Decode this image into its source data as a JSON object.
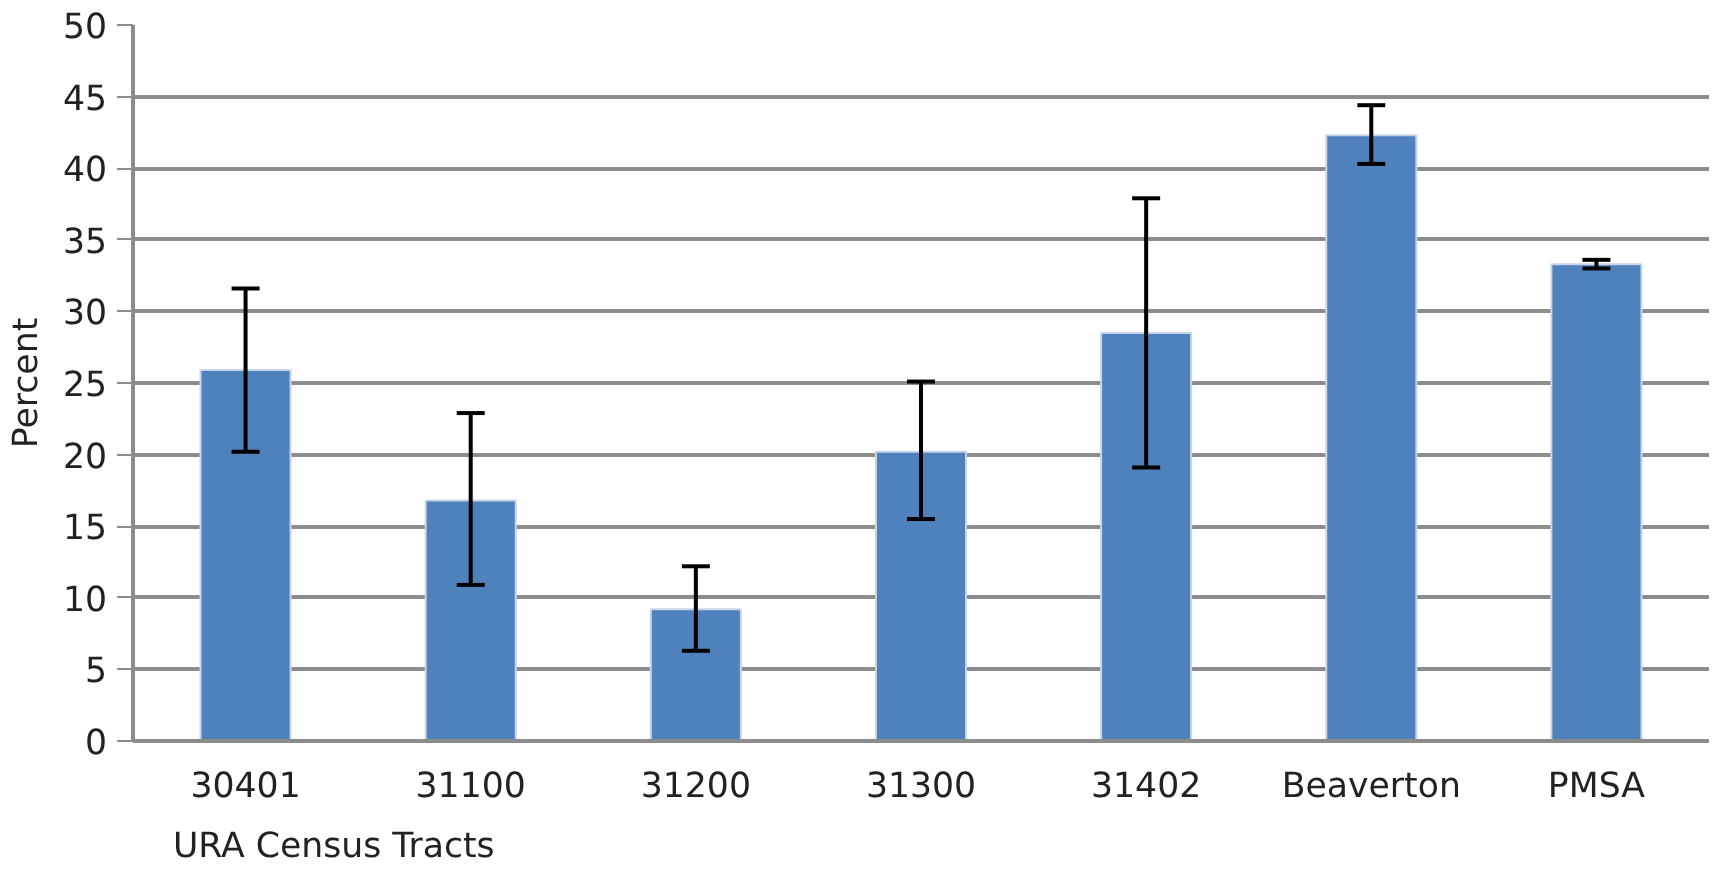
{
  "chart_data": {
    "type": "bar",
    "xlabel": "URA Census Tracts",
    "ylabel": "Percent",
    "categories": [
      "30401",
      "31100",
      "31200",
      "31300",
      "31402",
      "Beaverton",
      "PMSA"
    ],
    "values": [
      25.9,
      16.8,
      9.2,
      20.2,
      28.5,
      42.3,
      33.3
    ],
    "errors": [
      [
        20.2,
        31.6
      ],
      [
        10.9,
        22.9
      ],
      [
        6.3,
        12.2
      ],
      [
        15.5,
        25.1
      ],
      [
        19.1,
        37.9
      ],
      [
        40.3,
        44.4
      ],
      [
        33.0,
        33.6
      ]
    ],
    "color": "#4f81bd",
    "ylim": [
      0,
      50
    ],
    "yticks": [
      0,
      5,
      10,
      15,
      20,
      25,
      30,
      35,
      40,
      45,
      50
    ],
    "grid": "y"
  }
}
